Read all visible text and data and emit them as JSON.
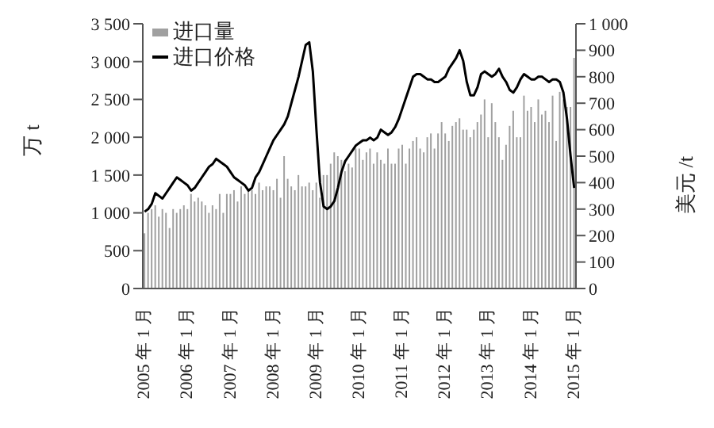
{
  "chart_data": {
    "type": "bar",
    "ylabel": "万 t",
    "y2label": "美元 /t",
    "categories": [
      "2005 年 1 月",
      null,
      null,
      null,
      null,
      null,
      null,
      null,
      null,
      null,
      null,
      null,
      "2006 年 1 月",
      null,
      null,
      null,
      null,
      null,
      null,
      null,
      null,
      null,
      null,
      null,
      "2007 年 1 月",
      null,
      null,
      null,
      null,
      null,
      null,
      null,
      null,
      null,
      null,
      null,
      "2008 年 1 月",
      null,
      null,
      null,
      null,
      null,
      null,
      null,
      null,
      null,
      null,
      null,
      "2009 年 1 月",
      null,
      null,
      null,
      null,
      null,
      null,
      null,
      null,
      null,
      null,
      null,
      "2010 年 1 月",
      null,
      null,
      null,
      null,
      null,
      null,
      null,
      null,
      null,
      null,
      null,
      "2011 年 1 月",
      null,
      null,
      null,
      null,
      null,
      null,
      null,
      null,
      null,
      null,
      null,
      "2012 年 1 月",
      null,
      null,
      null,
      null,
      null,
      null,
      null,
      null,
      null,
      null,
      null,
      "2013 年 1 月",
      null,
      null,
      null,
      null,
      null,
      null,
      null,
      null,
      null,
      null,
      null,
      "2014 年 1 月",
      null,
      null,
      null,
      null,
      null,
      null,
      null,
      null,
      null,
      null,
      null,
      "2015 年 1 月"
    ],
    "series": [
      {
        "name": "进口量",
        "color": "#a0a0a0",
        "values": [
          730,
          1000,
          1050,
          1100,
          950,
          1050,
          1000,
          800,
          1050,
          1000,
          1050,
          1100,
          1050,
          1250,
          1150,
          1200,
          1150,
          1100,
          1000,
          1100,
          1050,
          1250,
          1000,
          1250,
          1250,
          1300,
          1150,
          1350,
          1250,
          1300,
          1300,
          1250,
          1400,
          1300,
          1350,
          1350,
          1300,
          1450,
          1200,
          1750,
          1450,
          1350,
          1300,
          1500,
          1350,
          1350,
          1400,
          1300,
          1400,
          1200,
          1500,
          1500,
          1650,
          1800,
          1750,
          1700,
          1550,
          1650,
          1600,
          1850,
          1850,
          1700,
          1800,
          1850,
          1650,
          1800,
          1700,
          1650,
          1850,
          1650,
          1650,
          1850,
          1900,
          1650,
          1850,
          1950,
          2000,
          1850,
          1800,
          2000,
          2050,
          1850,
          2050,
          2200,
          2050,
          1950,
          2150,
          2200,
          2250,
          2100,
          2100,
          2000,
          2100,
          2200,
          2300,
          2500,
          2000,
          2450,
          2200,
          2000,
          1700,
          1900,
          2150,
          2350,
          2000,
          2000,
          2550,
          2350,
          2400,
          2200,
          2500,
          2300,
          2350,
          2200,
          2550,
          1950,
          2600,
          2500,
          2400,
          2400,
          3050
        ]
      },
      {
        "name": "进口价格",
        "type": "line",
        "axis": "y2",
        "color": "#000000",
        "values": [
          290,
          300,
          320,
          360,
          350,
          340,
          360,
          380,
          400,
          420,
          410,
          400,
          390,
          370,
          380,
          400,
          420,
          440,
          460,
          470,
          490,
          480,
          470,
          460,
          440,
          420,
          410,
          400,
          390,
          370,
          380,
          420,
          440,
          470,
          500,
          530,
          560,
          580,
          600,
          620,
          650,
          700,
          750,
          800,
          860,
          920,
          930,
          820,
          600,
          400,
          310,
          300,
          310,
          330,
          380,
          440,
          480,
          500,
          520,
          540,
          550,
          560,
          560,
          570,
          560,
          570,
          600,
          590,
          580,
          590,
          610,
          640,
          680,
          720,
          760,
          800,
          810,
          810,
          800,
          790,
          790,
          780,
          780,
          790,
          800,
          830,
          850,
          870,
          900,
          860,
          780,
          730,
          730,
          760,
          810,
          820,
          810,
          800,
          810,
          830,
          800,
          780,
          750,
          740,
          760,
          790,
          810,
          800,
          790,
          790,
          800,
          800,
          790,
          780,
          790,
          790,
          780,
          740,
          640,
          500,
          380
        ]
      }
    ],
    "ylim": [
      0,
      3500
    ],
    "yticks": [
      0,
      500,
      {
        "value": 1000,
        "label": "1 000"
      },
      {
        "value": 1500,
        "label": "1 500"
      },
      {
        "value": 2000,
        "label": "2 000"
      },
      {
        "value": 2500,
        "label": "2 500"
      },
      {
        "value": 3000,
        "label": "3 000"
      },
      {
        "value": 3500,
        "label": "3 500"
      }
    ],
    "y2lim": [
      0,
      1000
    ],
    "y2ticks": [
      0,
      100,
      200,
      300,
      400,
      500,
      600,
      700,
      800,
      900,
      {
        "value": 1000,
        "label": "1 000"
      }
    ],
    "legend": "top left",
    "grid": false,
    "marker": "none",
    "line_style": "solid"
  }
}
